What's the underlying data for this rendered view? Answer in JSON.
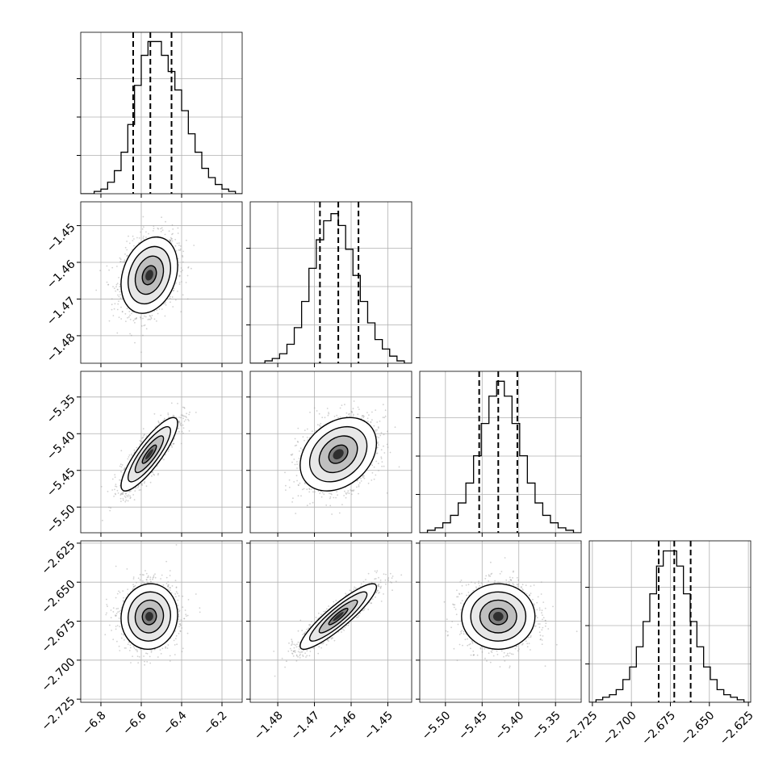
{
  "chart_data": {
    "type": "corner",
    "n_params": 4,
    "grid": true,
    "colors": {
      "line": "#000000",
      "grid": "#b0b0b0",
      "points": "#9a9a9a"
    },
    "params": [
      {
        "index": 0,
        "range": [
          -6.9,
          -6.1
        ],
        "ticks": [
          -6.8,
          -6.6,
          -6.4,
          -6.2
        ],
        "tick_labels": [
          "−6.8",
          "−6.6",
          "−6.4",
          "−6.2"
        ],
        "quantiles": [
          -6.64,
          -6.555,
          -6.45
        ],
        "mean": -6.56,
        "sd": 0.07
      },
      {
        "index": 1,
        "range": [
          -1.4875,
          -1.4435
        ],
        "ticks": [
          -1.48,
          -1.47,
          -1.46,
          -1.45
        ],
        "tick_labels": [
          "−1.48",
          "−1.47",
          "−1.46",
          "−1.45"
        ],
        "quantiles": [
          -1.4685,
          -1.4635,
          -1.458
        ],
        "mean": -1.4635,
        "sd": 0.0052
      },
      {
        "index": 2,
        "range": [
          -5.535,
          -5.315
        ],
        "ticks": [
          -5.5,
          -5.45,
          -5.4,
          -5.35
        ],
        "tick_labels": [
          "−5.50",
          "−5.45",
          "−5.40",
          "−5.35"
        ],
        "quantiles": [
          -5.454,
          -5.428,
          -5.402
        ],
        "mean": -5.428,
        "sd": 0.025
      },
      {
        "index": 3,
        "range": [
          -2.727,
          -2.6235
        ],
        "ticks": [
          -2.725,
          -2.7,
          -2.675,
          -2.65,
          -2.625
        ],
        "tick_labels": [
          "−2.725",
          "−2.700",
          "−2.675",
          "−2.650",
          "−2.625"
        ],
        "quantiles": [
          -2.6825,
          -2.6725,
          -2.662
        ],
        "mean": -2.672,
        "sd": 0.0105
      }
    ],
    "histograms": [
      {
        "param": 0,
        "edges_range": [
          -6.9,
          -6.1
        ],
        "counts": [
          0,
          0,
          1,
          2,
          5,
          10,
          18,
          30,
          47,
          60,
          66,
          66,
          60,
          53,
          45,
          36,
          26,
          18,
          11,
          7,
          4,
          2,
          1,
          0
        ],
        "ylim_max": 70
      },
      {
        "param": 1,
        "edges_range": [
          -1.4875,
          -1.4435
        ],
        "counts": [
          0,
          0,
          1,
          2,
          4,
          8,
          15,
          26,
          40,
          52,
          60,
          63,
          58,
          48,
          37,
          26,
          17,
          10,
          6,
          3,
          1,
          0
        ],
        "ylim_max": 68
      },
      {
        "param": 2,
        "edges_range": [
          -5.535,
          -5.315
        ],
        "counts": [
          0,
          1,
          2,
          4,
          7,
          12,
          20,
          31,
          44,
          55,
          61,
          55,
          44,
          31,
          20,
          12,
          7,
          4,
          2,
          1,
          0
        ],
        "ylim_max": 65
      },
      {
        "param": 3,
        "edges_range": [
          -2.727,
          -2.6235
        ],
        "counts": [
          0,
          1,
          2,
          3,
          5,
          9,
          14,
          22,
          32,
          43,
          54,
          60,
          60,
          54,
          43,
          32,
          22,
          14,
          9,
          5,
          3,
          2,
          1,
          0
        ],
        "ylim_max": 64
      }
    ],
    "correlations": [
      {
        "pair": [
          0,
          1
        ],
        "r": 0.25
      },
      {
        "pair": [
          0,
          2
        ],
        "r": 0.85
      },
      {
        "pair": [
          1,
          2
        ],
        "r": 0.3
      },
      {
        "pair": [
          0,
          3
        ],
        "r": 0.05
      },
      {
        "pair": [
          1,
          3
        ],
        "r": 0.9
      },
      {
        "pair": [
          2,
          3
        ],
        "r": 0.0
      }
    ],
    "contour_levels_sigma": [
      0.5,
      1.0,
      1.5,
      2.0
    ]
  }
}
